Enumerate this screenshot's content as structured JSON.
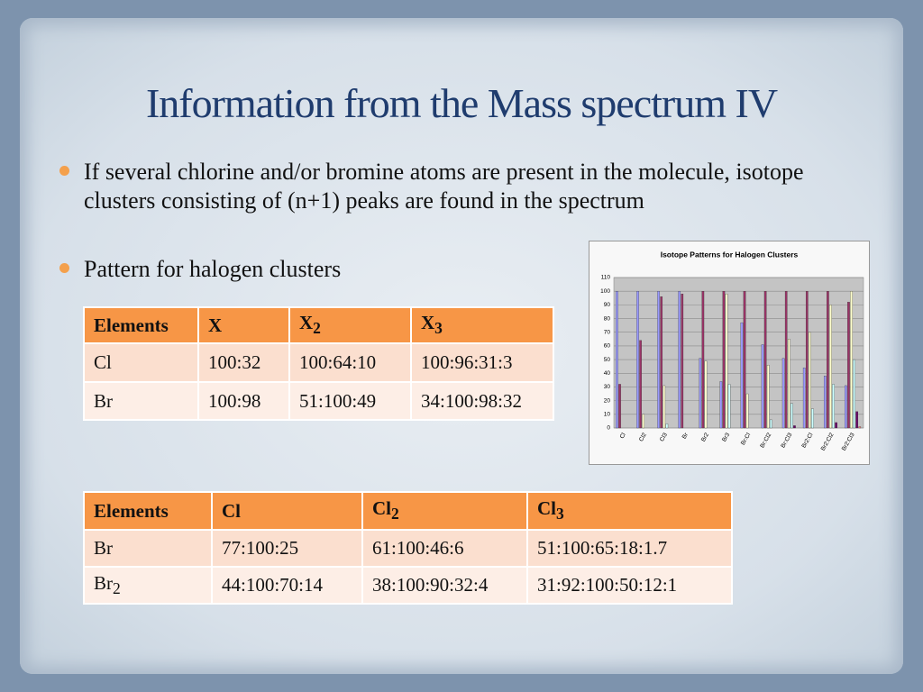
{
  "title": "Information from the Mass spectrum IV",
  "bullets": [
    "If several chlorine and/or bromine atoms are present in the molecule, isotope clusters consisting of (n+1) peaks are found in the spectrum",
    "Pattern for halogen clusters"
  ],
  "tables": [
    {
      "rows": [
        [
          "Elements",
          "X",
          {
            "base": "X",
            "sub": "2"
          },
          {
            "base": "X",
            "sub": "3"
          }
        ],
        [
          "Cl",
          "100:32",
          "100:64:10",
          "100:96:31:3"
        ],
        [
          "Br",
          "100:98",
          "51:100:49",
          "34:100:98:32"
        ]
      ]
    },
    {
      "rows": [
        [
          "Elements",
          "Cl",
          {
            "base": "Cl",
            "sub": "2"
          },
          {
            "base": "Cl",
            "sub": "3"
          }
        ],
        [
          "Br",
          "77:100:25",
          "61:100:46:6",
          "51:100:65:18:1.7"
        ],
        [
          {
            "base": "Br",
            "sub": "2"
          },
          "44:100:70:14",
          "38:100:90:32:4",
          "31:92:100:50:12:1"
        ]
      ]
    }
  ],
  "chart_data": {
    "type": "bar",
    "title": "Isotope Patterns for Halogen Clusters",
    "categories": [
      "Cl",
      "Cl2",
      "Cl3",
      "Br",
      "Br2",
      "Br3",
      "Br:Cl",
      "Br:Cl2",
      "Br:Cl3",
      "Br2:Cl",
      "Br2:Cl2",
      "Br2:Cl3"
    ],
    "series": [
      {
        "color": "#9999ff",
        "values": [
          100,
          100,
          100,
          100,
          51,
          34,
          77,
          61,
          51,
          44,
          38,
          31
        ]
      },
      {
        "color": "#993366",
        "values": [
          32,
          64,
          96,
          98,
          100,
          100,
          100,
          100,
          100,
          100,
          100,
          92
        ]
      },
      {
        "color": "#ffffcc",
        "values": [
          null,
          10,
          31,
          null,
          49,
          98,
          25,
          46,
          65,
          70,
          90,
          100
        ]
      },
      {
        "color": "#ccffff",
        "values": [
          null,
          null,
          3,
          null,
          null,
          32,
          null,
          6,
          18,
          14,
          32,
          50
        ]
      },
      {
        "color": "#660066",
        "values": [
          null,
          null,
          null,
          null,
          null,
          null,
          null,
          null,
          1.7,
          null,
          4,
          12
        ]
      },
      {
        "color": "#ff8080",
        "values": [
          null,
          null,
          null,
          null,
          null,
          null,
          null,
          null,
          null,
          null,
          null,
          1
        ]
      }
    ],
    "ylim": [
      0,
      110
    ],
    "yticks": [
      0,
      10,
      20,
      30,
      40,
      50,
      60,
      70,
      80,
      90,
      100,
      110
    ],
    "grid": true
  }
}
